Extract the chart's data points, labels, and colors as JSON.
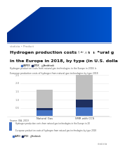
{
  "title_line1": "Hydrogen production costs from natural g",
  "title_line2": "in the Europe in 2018, by type (in U.S. dolla",
  "small_label": "statista • Product",
  "subtitle1": "Hydrogen production costs from natural gas technologies in the Europe in 2018, by type (in U.S. dollars per kilogram)",
  "subtitle2": "European production costs of hydrogen from natural gas technologies by type 2018",
  "categories": [
    "Natural Gas",
    "SMR with CCS"
  ],
  "series": [
    {
      "name": "CAPEX",
      "color": "#4472c4",
      "values": [
        0.35,
        0.55
      ]
    },
    {
      "name": "OPEX",
      "color": "#1f3060",
      "values": [
        0.15,
        0.45
      ]
    },
    {
      "name": "Feedstock",
      "color": "#c0c0c0",
      "values": [
        1.1,
        1.55
      ]
    }
  ],
  "ylim": [
    0,
    2.5
  ],
  "yticks": [
    0.5,
    1.0,
    1.5,
    2.0,
    2.5
  ],
  "bg_color": "#ffffff",
  "grid_color": "#e8e8e8",
  "header_blue": "#0050c8",
  "pdf_bg": "#1a2a3a",
  "source_text": "Source: IEA, 2019",
  "statista_color": "#888888",
  "bottom_title": "Hydrogen production costs from natural gas technologies in the Europe in 2018, by type (in U.S. dollars per kilogram)",
  "bottom_subtitle": "European production costs of hydrogen from natural gas technologies by type 2018"
}
